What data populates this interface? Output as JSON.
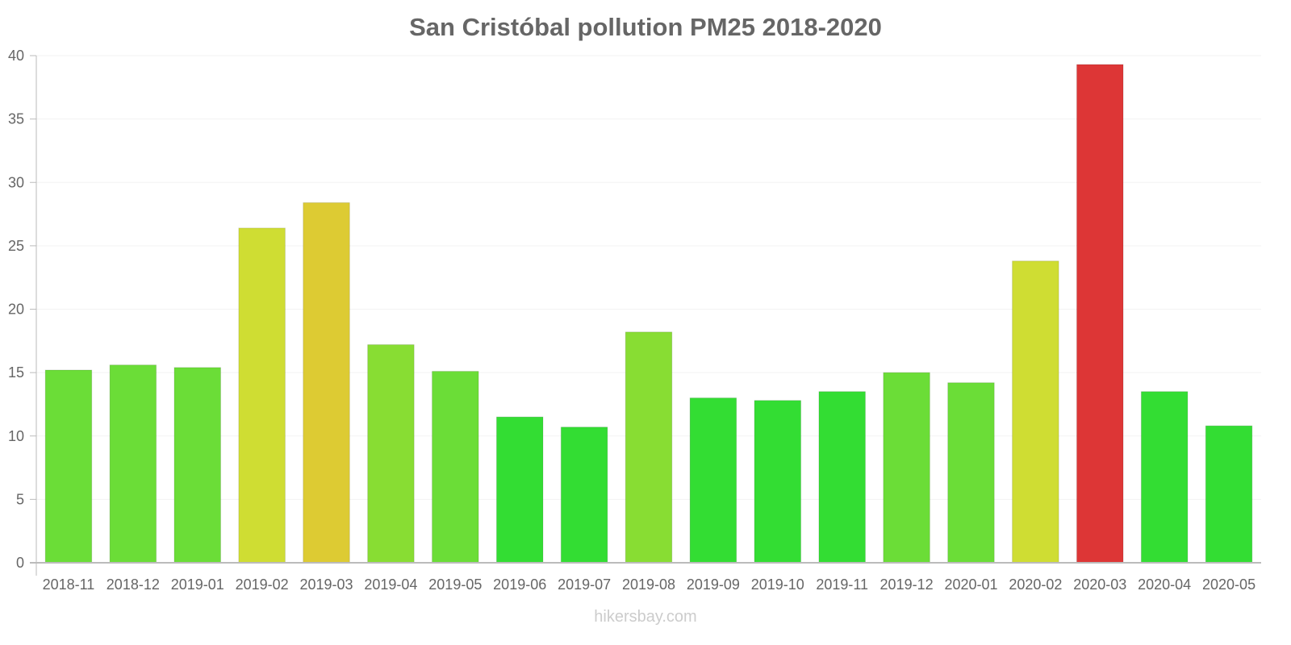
{
  "chart_data": {
    "type": "bar",
    "title": "San Cristóbal pollution PM25 2018-2020",
    "xlabel": "",
    "ylabel": "",
    "ylim": [
      0,
      40
    ],
    "yticks": [
      0,
      5,
      10,
      15,
      20,
      25,
      30,
      35,
      40
    ],
    "grid": true,
    "categories": [
      "2018-11",
      "2018-12",
      "2019-01",
      "2019-02",
      "2019-03",
      "2019-04",
      "2019-05",
      "2019-06",
      "2019-07",
      "2019-08",
      "2019-09",
      "2019-10",
      "2019-11",
      "2019-12",
      "2020-01",
      "2020-02",
      "2020-03",
      "2020-04",
      "2020-05"
    ],
    "values": [
      15.2,
      15.6,
      15.4,
      26.4,
      28.4,
      17.2,
      15.1,
      11.5,
      10.7,
      18.2,
      13.0,
      12.8,
      13.5,
      15.0,
      14.2,
      23.8,
      39.3,
      13.5,
      10.8
    ],
    "colors": [
      "#6bdd37",
      "#6bdd37",
      "#6bdd37",
      "#cfdd33",
      "#ddcb33",
      "#88dd33",
      "#6bdd37",
      "#33dd33",
      "#33dd33",
      "#88dd33",
      "#33dd33",
      "#33dd33",
      "#33dd33",
      "#6bdd37",
      "#6bdd37",
      "#cfdd33",
      "#dd3636",
      "#33dd33",
      "#33dd33"
    ]
  },
  "watermark": "hikersbay.com"
}
